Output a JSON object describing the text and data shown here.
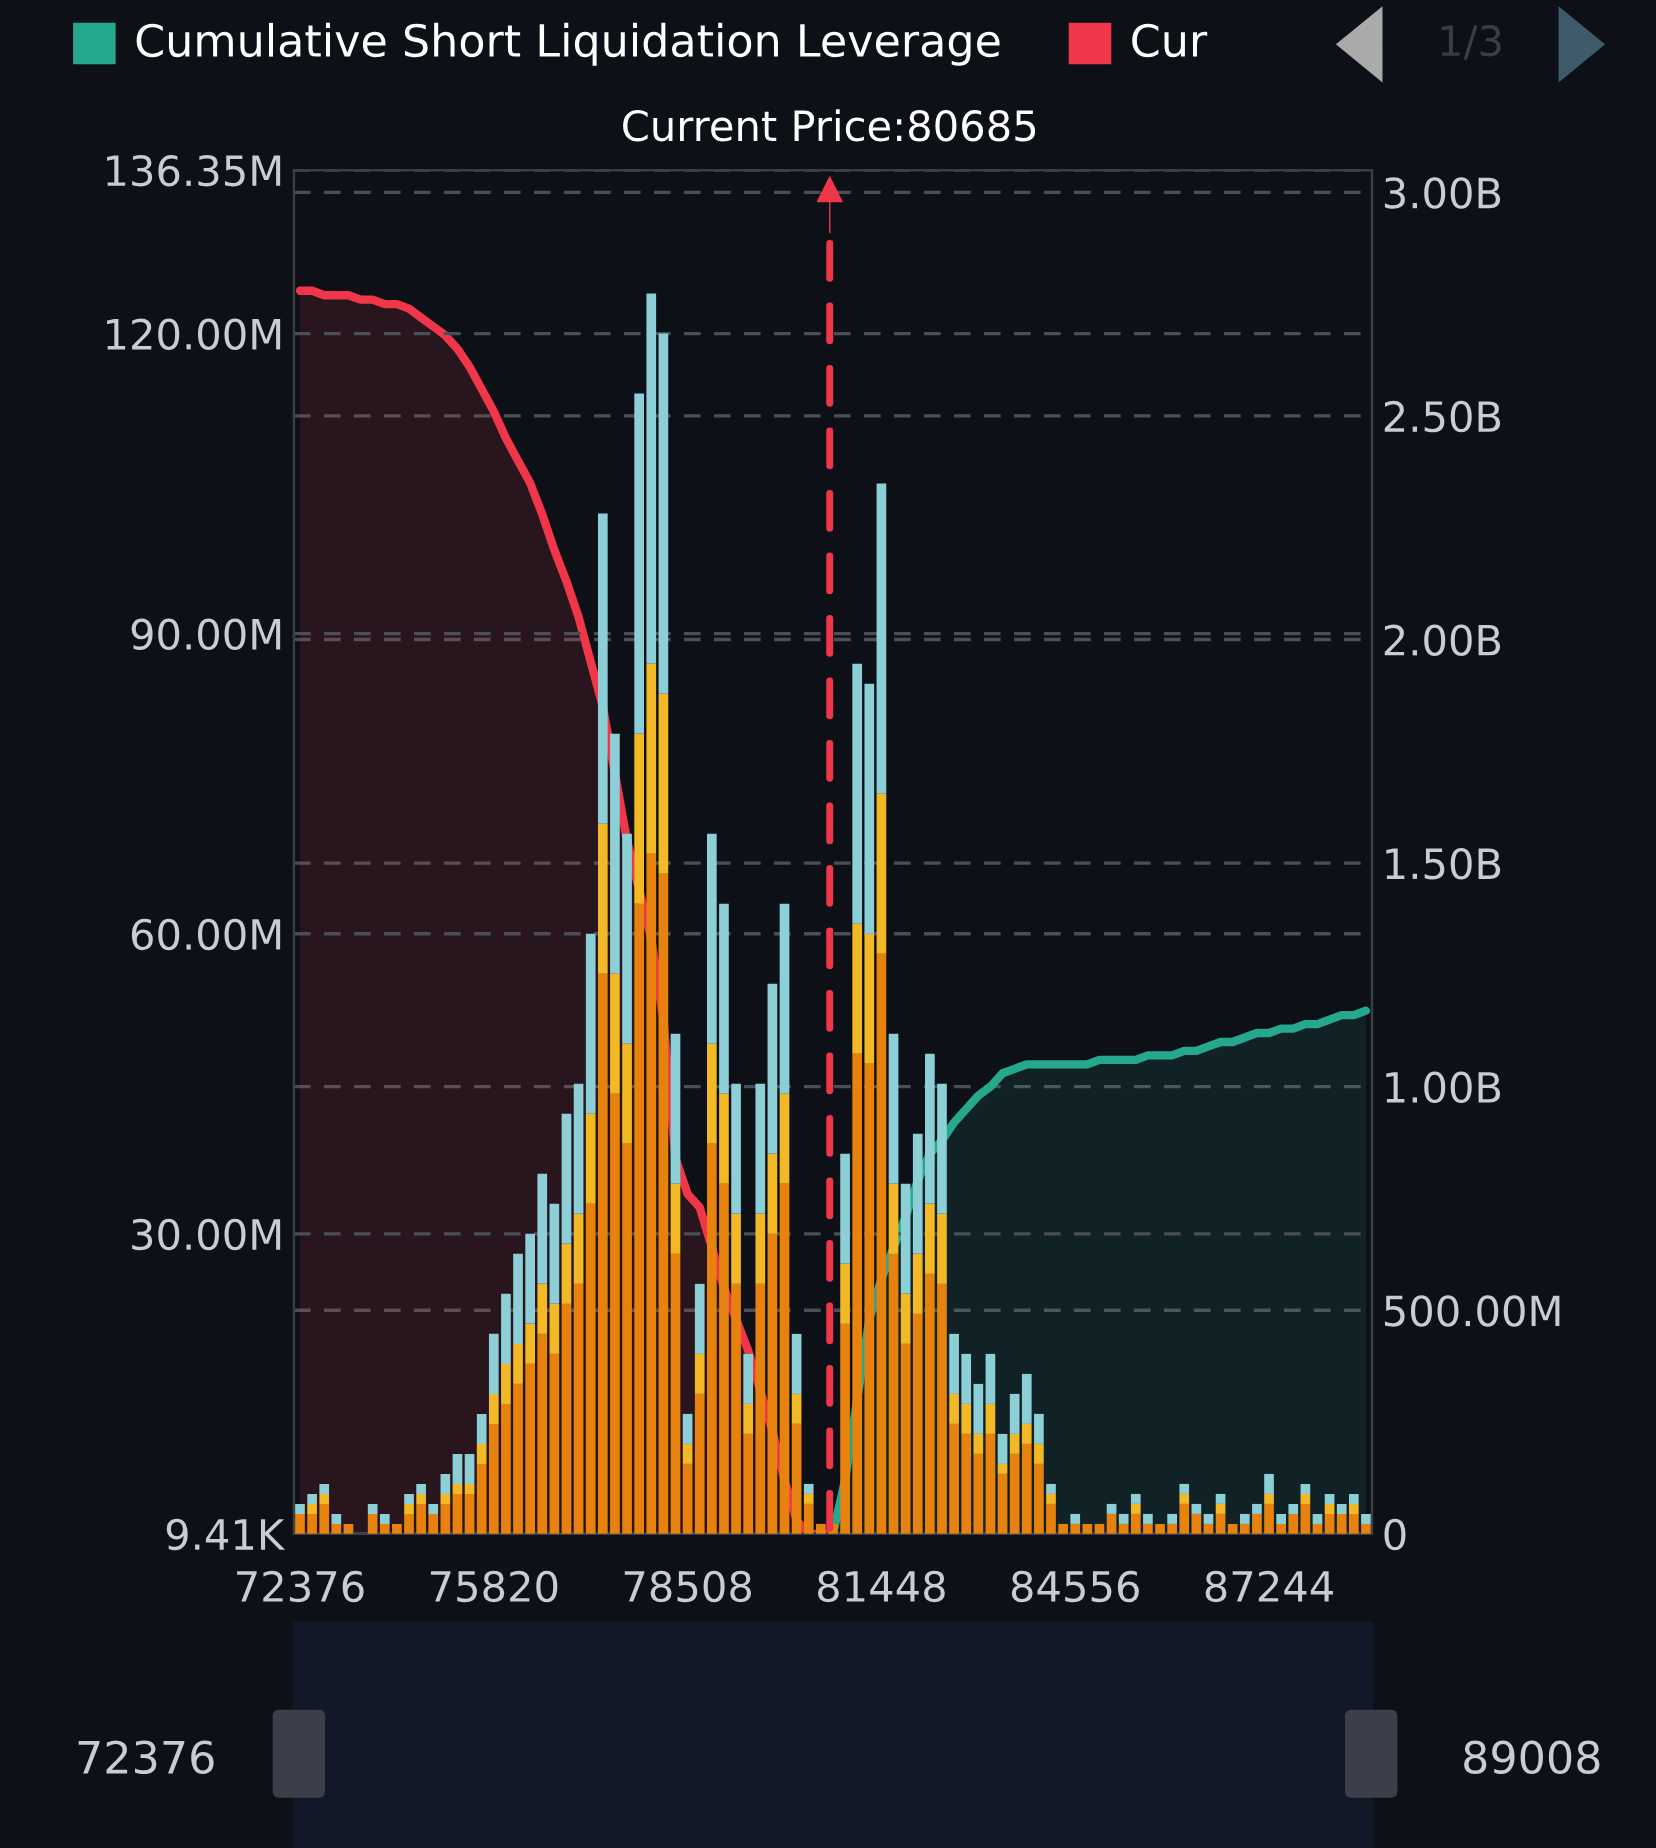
{
  "chart_data": {
    "type": "bar",
    "stacked": true,
    "categories": [
      "72376",
      null,
      null,
      null,
      null,
      null,
      null,
      null,
      null,
      null,
      null,
      null,
      null,
      null,
      null,
      null,
      "75820",
      null,
      null,
      null,
      null,
      null,
      null,
      null,
      null,
      null,
      null,
      null,
      null,
      null,
      null,
      null,
      "78508",
      null,
      null,
      null,
      null,
      null,
      null,
      null,
      null,
      null,
      null,
      null,
      null,
      null,
      null,
      null,
      "81448",
      null,
      null,
      null,
      null,
      null,
      null,
      null,
      null,
      null,
      null,
      null,
      null,
      null,
      null,
      null,
      "84556",
      null,
      null,
      null,
      null,
      null,
      null,
      null,
      null,
      null,
      null,
      null,
      null,
      null,
      null,
      null,
      "87244",
      null,
      null,
      null,
      null,
      null,
      null,
      null,
      null
    ],
    "series": [
      {
        "color": "#e8820f",
        "values": [
          2000000.0,
          2000000.0,
          3000000.0,
          1000000.0,
          1000000.0,
          null,
          2000000.0,
          1000000.0,
          1000000.0,
          2000000.0,
          3000000.0,
          2000000.0,
          3000000.0,
          4000000.0,
          4000000.0,
          7000000.0,
          11000000.0,
          13000000.0,
          15000000.0,
          17000000.0,
          20000000.0,
          18000000.0,
          23000000.0,
          25000000.0,
          33000000.0,
          56000000.0,
          44000000.0,
          39000000.0,
          63000000.0,
          68000000.0,
          66000000.0,
          28000000.0,
          7000000.0,
          14000000.0,
          39000000.0,
          35000000.0,
          25000000.0,
          10000000.0,
          25000000.0,
          30000000.0,
          35000000.0,
          11000000.0,
          3000000.0,
          1000000.0,
          1000000.0,
          21000000.0,
          48000000.0,
          47000000.0,
          58000000.0,
          28000000.0,
          19000000.0,
          22000000.0,
          26000000.0,
          25000000.0,
          11000000.0,
          10000000.0,
          8000000.0,
          10000000.0,
          6000000.0,
          8000000.0,
          9000000.0,
          7000000.0,
          3000000.0,
          1000000.0,
          1000000.0,
          1000000.0,
          1000000.0,
          2000000.0,
          1000000.0,
          2000000.0,
          1000000.0,
          1000000.0,
          1000000.0,
          3000000.0,
          2000000.0,
          1000000.0,
          2000000.0,
          1000000.0,
          1000000.0,
          2000000.0,
          3000000.0,
          1000000.0,
          2000000.0,
          3000000.0,
          1000000.0,
          2000000.0,
          2000000.0,
          2000000.0,
          1000000.0
        ]
      },
      {
        "color": "#f2b826",
        "values": [
          null,
          1000000.0,
          1000000.0,
          null,
          null,
          null,
          null,
          null,
          null,
          1000000.0,
          1000000.0,
          null,
          1000000.0,
          1000000.0,
          1000000.0,
          2000000.0,
          3000000.0,
          4000000.0,
          4000000.0,
          4000000.0,
          5000000.0,
          5000000.0,
          6000000.0,
          7000000.0,
          9000000.0,
          15000000.0,
          12000000.0,
          10000000.0,
          17000000.0,
          19000000.0,
          18000000.0,
          7000000.0,
          2000000.0,
          4000000.0,
          10000000.0,
          9000000.0,
          7000000.0,
          3000000.0,
          7000000.0,
          8000000.0,
          9000000.0,
          3000000.0,
          1000000.0,
          null,
          null,
          6000000.0,
          13000000.0,
          13000000.0,
          16000000.0,
          7000000.0,
          5000000.0,
          6000000.0,
          7000000.0,
          7000000.0,
          3000000.0,
          3000000.0,
          2000000.0,
          3000000.0,
          1000000.0,
          2000000.0,
          2000000.0,
          2000000.0,
          1000000.0,
          null,
          null,
          null,
          null,
          null,
          null,
          1000000.0,
          null,
          null,
          null,
          1000000.0,
          null,
          null,
          1000000.0,
          null,
          null,
          null,
          1000000.0,
          null,
          null,
          1000000.0,
          null,
          1000000.0,
          null,
          1000000.0,
          null
        ]
      },
      {
        "color": "#8ccfd6",
        "values": [
          1000000.0,
          1000000.0,
          1000000.0,
          1000000.0,
          null,
          null,
          1000000.0,
          1000000.0,
          null,
          1000000.0,
          1000000.0,
          1000000.0,
          2000000.0,
          3000000.0,
          3000000.0,
          3000000.0,
          6000000.0,
          7000000.0,
          9000000.0,
          9000000.0,
          11000000.0,
          10000000.0,
          13000000.0,
          13000000.0,
          18000000.0,
          31000000.0,
          24000000.0,
          21000000.0,
          34000000.0,
          37000000.0,
          36000000.0,
          15000000.0,
          3000000.0,
          7000000.0,
          21000000.0,
          19000000.0,
          13000000.0,
          5000000.0,
          13000000.0,
          17000000.0,
          19000000.0,
          6000000.0,
          1000000.0,
          null,
          null,
          11000000.0,
          26000000.0,
          25000000.0,
          31000000.0,
          15000000.0,
          11000000.0,
          12000000.0,
          15000000.0,
          13000000.0,
          6000000.0,
          5000000.0,
          5000000.0,
          5000000.0,
          3000000.0,
          4000000.0,
          5000000.0,
          3000000.0,
          1000000.0,
          null,
          1000000.0,
          null,
          null,
          1000000.0,
          1000000.0,
          1000000.0,
          1000000.0,
          null,
          1000000.0,
          1000000.0,
          1000000.0,
          1000000.0,
          1000000.0,
          null,
          1000000.0,
          1000000.0,
          2000000.0,
          1000000.0,
          1000000.0,
          1000000.0,
          1000000.0,
          1000000.0,
          1000000.0,
          1000000.0,
          1000000.0
        ]
      },
      {
        "name": "Cumulative Short Liquidation Leverage",
        "type": "area",
        "axis": "y2",
        "color": "#26a88e",
        "values": [
          null,
          null,
          null,
          null,
          null,
          null,
          null,
          null,
          null,
          null,
          null,
          null,
          null,
          null,
          null,
          null,
          null,
          null,
          null,
          null,
          null,
          null,
          null,
          null,
          null,
          null,
          null,
          null,
          null,
          null,
          null,
          null,
          null,
          null,
          null,
          null,
          null,
          null,
          null,
          null,
          null,
          null,
          null,
          null,
          0,
          120000000.0,
          300000000.0,
          480000000.0,
          570000000.0,
          640000000.0,
          710000000.0,
          790000000.0,
          850000000.0,
          880000000.0,
          920000000.0,
          950000000.0,
          980000000.0,
          1000000000.0,
          1030000000.0,
          1040000000.0,
          1050000000.0,
          1050000000.0,
          1050000000.0,
          1050000000.0,
          1050000000.0,
          1050000000.0,
          1060000000.0,
          1060000000.0,
          1060000000.0,
          1060000000.0,
          1070000000.0,
          1070000000.0,
          1070000000.0,
          1080000000.0,
          1080000000.0,
          1090000000.0,
          1100000000.0,
          1100000000.0,
          1110000000.0,
          1120000000.0,
          1120000000.0,
          1130000000.0,
          1130000000.0,
          1140000000.0,
          1140000000.0,
          1150000000.0,
          1160000000.0,
          1160000000.0,
          1170000000.0
        ]
      },
      {
        "name": "Cur",
        "type": "area",
        "axis": "y2",
        "color": "#f0374a",
        "values": [
          2780000000.0,
          2780000000.0,
          2770000000.0,
          2770000000.0,
          2770000000.0,
          2760000000.0,
          2760000000.0,
          2750000000.0,
          2750000000.0,
          2740000000.0,
          2720000000.0,
          2700000000.0,
          2680000000.0,
          2650000000.0,
          2610000000.0,
          2560000000.0,
          2510000000.0,
          2450000000.0,
          2400000000.0,
          2350000000.0,
          2280000000.0,
          2200000000.0,
          2130000000.0,
          2050000000.0,
          1950000000.0,
          1850000000.0,
          1700000000.0,
          1550000000.0,
          1440000000.0,
          1330000000.0,
          1150000000.0,
          840000000.0,
          760000000.0,
          730000000.0,
          640000000.0,
          550000000.0,
          480000000.0,
          410000000.0,
          320000000.0,
          230000000.0,
          120000000.0,
          30000000.0,
          0,
          0,
          0,
          null,
          null,
          null,
          null,
          null,
          null,
          null,
          null,
          null,
          null,
          null,
          null,
          null,
          null,
          null,
          null,
          null,
          null,
          null,
          null,
          null,
          null,
          null,
          null,
          null,
          null,
          null,
          null,
          null,
          null,
          null,
          null,
          null,
          null,
          null,
          null,
          null,
          null,
          null,
          null,
          null,
          null,
          null,
          null
        ]
      }
    ],
    "ylim": [
      9410,
      136350000
    ],
    "yticks": [
      {
        "value": 9410,
        "label": "9.41K"
      },
      {
        "value": 30000000,
        "label": "30.00M"
      },
      {
        "value": 60000000,
        "label": "60.00M"
      },
      {
        "value": 90000000,
        "label": "90.00M"
      },
      {
        "value": 120000000,
        "label": "120.00M"
      },
      {
        "value": 136350000,
        "label": "136.35M"
      }
    ],
    "y2lim": [
      0,
      3050000000.0
    ],
    "y2ticks": [
      0,
      {
        "value": 500000000.0,
        "label": "500.00M"
      },
      {
        "value": 1000000000.0,
        "label": "1.00B"
      },
      {
        "value": 1500000000.0,
        "label": "1.50B"
      },
      {
        "value": 2000000000.0,
        "label": "2.00B"
      },
      {
        "value": 2500000000.0,
        "label": "2.50B"
      },
      {
        "value": 3000000000.0,
        "label": "3.00B"
      }
    ],
    "annotations": [
      "Current Price:80685",
      "1/3",
      "72376",
      "89008"
    ],
    "grid": "y",
    "legend": "top left"
  }
}
